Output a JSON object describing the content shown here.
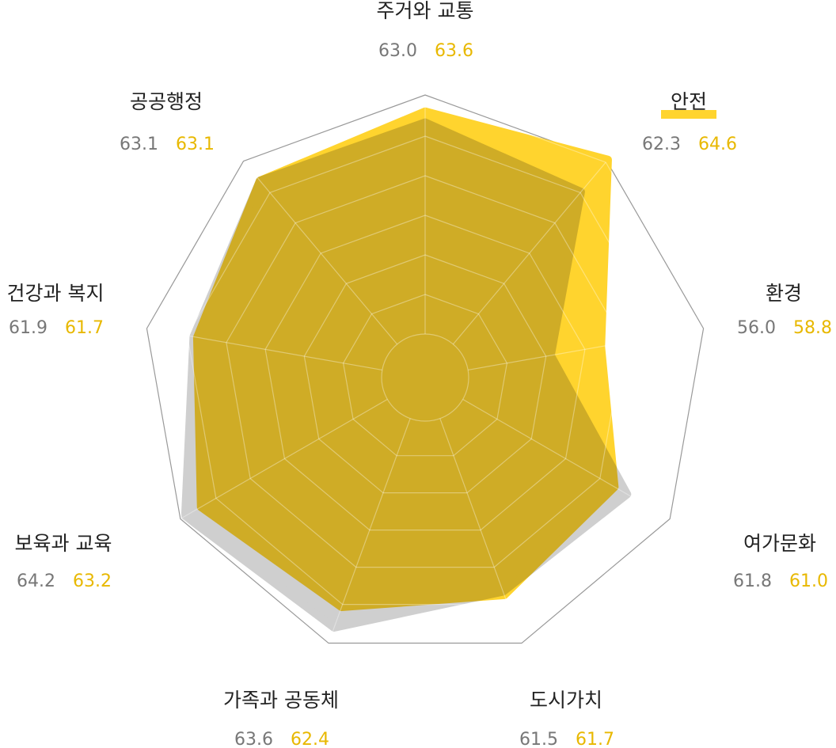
{
  "chart_data": {
    "type": "radar",
    "categories": [
      "주거와 교통",
      "안전",
      "환경",
      "여가문화",
      "도시가치",
      "가족과 공동체",
      "보육과 교육",
      "건강과 복지",
      "공공행정"
    ],
    "series": [
      {
        "color": "#cfcfcf",
        "values": [
          63.0,
          62.3,
          56.0,
          61.8,
          61.5,
          63.6,
          64.2,
          61.9,
          63.1
        ],
        "value_labels": [
          "63.0",
          "62.3",
          "56.0",
          "61.8",
          "61.5",
          "63.6",
          "64.2",
          "61.9",
          "63.1"
        ]
      },
      {
        "color": "#ffd42e",
        "values": [
          63.6,
          64.6,
          58.8,
          61.0,
          61.7,
          62.4,
          63.2,
          61.7,
          63.1
        ],
        "value_labels": [
          "63.6",
          "64.6",
          "58.8",
          "61.0",
          "61.7",
          "62.4",
          "63.2",
          "61.7",
          "63.1"
        ]
      }
    ],
    "rlim": [
      49,
      64.5
    ],
    "label_colors": [
      "#777777",
      "#e8b800"
    ]
  }
}
